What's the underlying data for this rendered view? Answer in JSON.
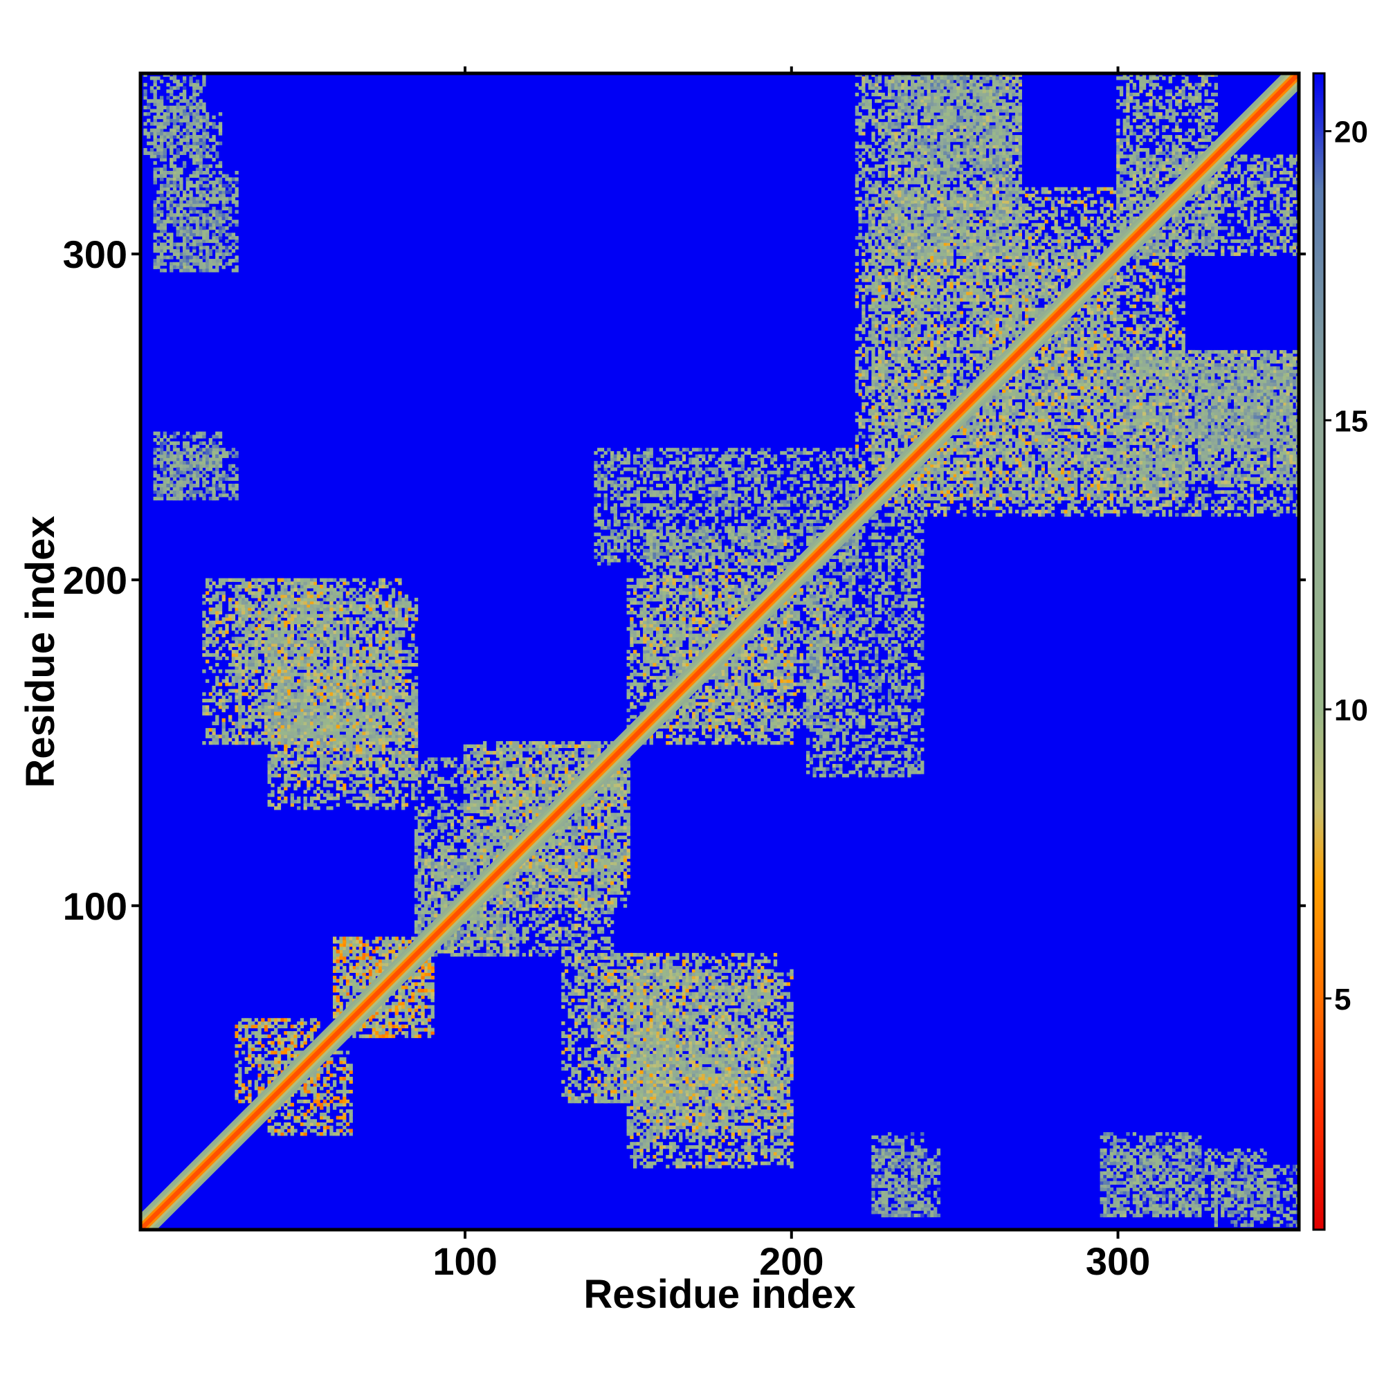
{
  "chart_data": {
    "type": "heatmap",
    "title": "",
    "xlabel": "Residue index",
    "ylabel": "Residue index",
    "x_range": [
      1,
      355
    ],
    "y_range": [
      1,
      355
    ],
    "x_ticks": [
      100,
      200,
      300
    ],
    "y_ticks": [
      100,
      200,
      300
    ],
    "colorbar": {
      "range": [
        1,
        21
      ],
      "ticks": [
        5,
        10,
        15,
        20
      ],
      "colors": [
        {
          "value": 1,
          "color": "#e00000"
        },
        {
          "value": 3,
          "color": "#ff3000"
        },
        {
          "value": 5,
          "color": "#ff7000"
        },
        {
          "value": 7,
          "color": "#ffa000"
        },
        {
          "value": 8.3,
          "color": "#c8c070"
        },
        {
          "value": 10,
          "color": "#9ab88a"
        },
        {
          "value": 15,
          "color": "#8fa898"
        },
        {
          "value": 19,
          "color": "#5a7ab0"
        },
        {
          "value": 21,
          "color": "#0000f5"
        }
      ]
    },
    "background_value": 21,
    "diagonal_band": [
      {
        "offset": 0,
        "value": 2
      },
      {
        "offset": 1,
        "value": 4
      },
      {
        "offset": 2,
        "value": 6
      },
      {
        "offset": 3,
        "value": 9
      },
      {
        "offset": 4,
        "value": 11
      },
      {
        "offset": 5,
        "value": 13
      }
    ],
    "contact_clusters": [
      {
        "x": [
          5,
          25
        ],
        "y": [
          295,
          345
        ],
        "mean": 14
      },
      {
        "x": [
          5,
          30
        ],
        "y": [
          225,
          240
        ],
        "mean": 15
      },
      {
        "x": [
          20,
          60
        ],
        "y": [
          150,
          200
        ],
        "mean": 12
      },
      {
        "x": [
          40,
          85
        ],
        "y": [
          140,
          195
        ],
        "mean": 12
      },
      {
        "x": [
          30,
          55
        ],
        "y": [
          40,
          65
        ],
        "mean": 10
      },
      {
        "x": [
          60,
          90
        ],
        "y": [
          60,
          90
        ],
        "mean": 10
      },
      {
        "x": [
          85,
          115
        ],
        "y": [
          85,
          145
        ],
        "mean": 13
      },
      {
        "x": [
          110,
          150
        ],
        "y": [
          100,
          150
        ],
        "mean": 12
      },
      {
        "x": [
          130,
          165
        ],
        "y": [
          40,
          85
        ],
        "mean": 12
      },
      {
        "x": [
          150,
          200
        ],
        "y": [
          30,
          80
        ],
        "mean": 12
      },
      {
        "x": [
          155,
          200
        ],
        "y": [
          150,
          215
        ],
        "mean": 12
      },
      {
        "x": [
          205,
          240
        ],
        "y": [
          140,
          220
        ],
        "mean": 14
      },
      {
        "x": [
          225,
          300
        ],
        "y": [
          220,
          320
        ],
        "mean": 12
      },
      {
        "x": [
          230,
          270
        ],
        "y": [
          300,
          355
        ],
        "mean": 13
      },
      {
        "x": [
          300,
          330
        ],
        "y": [
          300,
          355
        ],
        "mean": 13
      },
      {
        "x": [
          300,
          355
        ],
        "y": [
          220,
          270
        ],
        "mean": 13
      },
      {
        "x": [
          325,
          355
        ],
        "y": [
          240,
          265
        ],
        "mean": 14
      },
      {
        "x": [
          295,
          325
        ],
        "y": [
          5,
          30
        ],
        "mean": 15
      },
      {
        "x": [
          330,
          355
        ],
        "y": [
          2,
          20
        ],
        "mean": 15
      },
      {
        "x": [
          225,
          245
        ],
        "y": [
          5,
          25
        ],
        "mean": 15
      }
    ]
  }
}
